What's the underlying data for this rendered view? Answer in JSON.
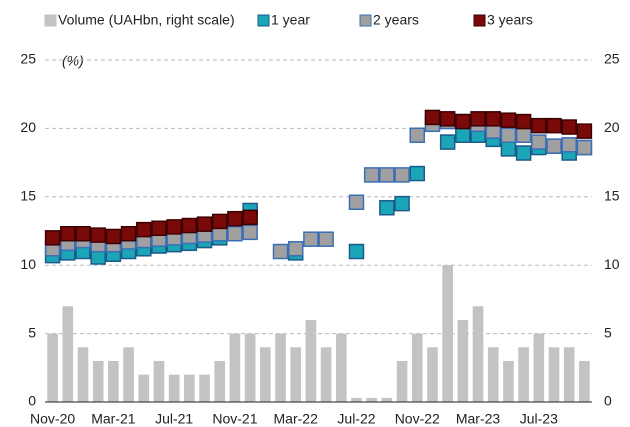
{
  "chart_data": {
    "type": "combo",
    "y_label": "(%)",
    "categories": [
      "Nov-20",
      null,
      null,
      null,
      "Mar-21",
      null,
      null,
      null,
      "Jul-21",
      null,
      null,
      null,
      "Nov-21",
      null,
      null,
      null,
      "Mar-22",
      null,
      null,
      null,
      "Jul-22",
      null,
      null,
      null,
      "Nov-22",
      null,
      null,
      null,
      "Mar-23",
      null,
      null,
      null,
      "Jul-23",
      null,
      null,
      null
    ],
    "series": [
      {
        "name": "Volume (UAHbn, right scale)",
        "kind": "bar",
        "axis": "y2",
        "color": "#c3c3c3",
        "values": [
          5,
          7,
          4,
          3,
          3,
          4,
          2,
          3,
          2,
          2,
          2,
          3,
          5,
          5,
          4,
          5,
          4,
          6,
          4,
          5,
          0.3,
          0.3,
          0.3,
          3,
          5,
          4,
          10,
          6,
          7,
          4,
          3,
          4,
          5,
          4,
          4,
          3
        ]
      },
      {
        "name": "1 year",
        "kind": "marker",
        "color": "#1aa6b7",
        "stroke": "#1c5a8a",
        "values": [
          10.7,
          10.9,
          11,
          10.6,
          10.8,
          11,
          11.2,
          11.4,
          11.5,
          11.6,
          11.8,
          12,
          12.5,
          14,
          null,
          null,
          10.9,
          null,
          null,
          null,
          11,
          null,
          14.2,
          14.5,
          16.7,
          null,
          19,
          19.5,
          19.5,
          19.2,
          18.5,
          18.2,
          18.6,
          18.7,
          18.2,
          18.6
        ]
      },
      {
        "name": "2 years",
        "kind": "marker",
        "color": "#a0a0a0",
        "stroke": "#3a6fb5",
        "values": [
          11.2,
          11.6,
          11.8,
          11.5,
          11.5,
          11.7,
          11.8,
          11.9,
          12,
          12.1,
          12.2,
          12.3,
          12.3,
          12.4,
          null,
          11,
          11.2,
          11.9,
          11.9,
          null,
          14.6,
          16.6,
          16.6,
          16.6,
          19.5,
          20.3,
          20.5,
          20.5,
          20.3,
          19.8,
          19.5,
          19.5,
          19,
          18.7,
          18.8,
          18.6
        ]
      },
      {
        "name": "3 years",
        "kind": "marker",
        "color": "#7a0a0a",
        "stroke": "#3d0000",
        "values": [
          12,
          12.3,
          12.3,
          12.2,
          12.1,
          12.3,
          12.6,
          12.7,
          12.8,
          12.9,
          13,
          13.2,
          13.4,
          13.5,
          null,
          null,
          null,
          null,
          null,
          null,
          null,
          null,
          null,
          null,
          null,
          20.8,
          20.7,
          20.5,
          20.7,
          20.7,
          20.6,
          20.5,
          20.2,
          20.2,
          20.1,
          19.8
        ]
      }
    ],
    "ylim": [
      0,
      25
    ],
    "yticks": [
      0,
      5,
      10,
      15,
      20,
      25
    ],
    "y2lim": [
      0,
      25
    ],
    "y2ticks": [
      0,
      5,
      10,
      15,
      20,
      25
    ],
    "grid": true
  }
}
